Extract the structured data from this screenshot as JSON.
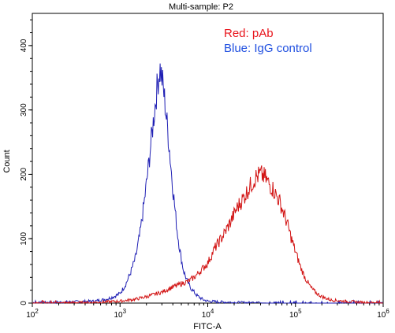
{
  "chart_data": {
    "type": "line",
    "title": "Multi-sample: P2",
    "xlabel": "FITC-A",
    "ylabel": "Count",
    "x_scale": "log",
    "xlim": [
      100,
      1000000
    ],
    "ylim": [
      0,
      450
    ],
    "x_ticks": [
      {
        "value": 100,
        "base": "10",
        "exp": "2"
      },
      {
        "value": 1000,
        "base": "10",
        "exp": "3"
      },
      {
        "value": 10000,
        "base": "10",
        "exp": "4"
      },
      {
        "value": 100000,
        "base": "10",
        "exp": "5"
      },
      {
        "value": 1000000,
        "base": "10",
        "exp": "6"
      }
    ],
    "y_ticks": [
      0,
      100,
      200,
      300,
      400
    ],
    "grid": false,
    "legend_position": "top-right",
    "legend": [
      {
        "label": "Red: pAb",
        "color": "#e8141b"
      },
      {
        "label": "Blue: IgG control",
        "color": "#1f4fe0"
      }
    ],
    "series": [
      {
        "color": "#1f1fb4",
        "x": [
          100,
          300,
          500,
          700,
          850,
          1000,
          1150,
          1300,
          1500,
          1700,
          1900,
          2100,
          2300,
          2500,
          2700,
          2850,
          3000,
          3200,
          3400,
          3600,
          3900,
          4200,
          4500,
          4900,
          5300,
          5800,
          6300,
          6900,
          7500,
          8200,
          9000,
          10000,
          13000,
          20000,
          50000,
          100000,
          1000000
        ],
        "y": [
          0,
          2,
          3,
          6,
          10,
          15,
          28,
          45,
          70,
          110,
          160,
          210,
          260,
          305,
          345,
          365,
          350,
          320,
          285,
          250,
          195,
          150,
          110,
          75,
          50,
          35,
          25,
          18,
          12,
          8,
          5,
          3,
          2,
          1,
          0,
          0,
          0
        ]
      },
      {
        "color": "#d21414",
        "x": [
          100,
          500,
          1000,
          1500,
          2000,
          3000,
          4000,
          5000,
          6000,
          7000,
          8000,
          10000,
          12000,
          15000,
          18000,
          22000,
          26000,
          30000,
          35000,
          40000,
          45000,
          50000,
          55000,
          60000,
          65000,
          70000,
          80000,
          90000,
          100000,
          115000,
          130000,
          150000,
          175000,
          200000,
          250000,
          350000,
          600000,
          1000000
        ],
        "y": [
          0,
          1,
          3,
          6,
          10,
          17,
          25,
          30,
          34,
          40,
          48,
          62,
          85,
          105,
          125,
          150,
          165,
          180,
          195,
          200,
          195,
          185,
          178,
          168,
          160,
          148,
          125,
          100,
          80,
          55,
          38,
          24,
          15,
          10,
          5,
          3,
          1,
          0
        ]
      }
    ]
  }
}
